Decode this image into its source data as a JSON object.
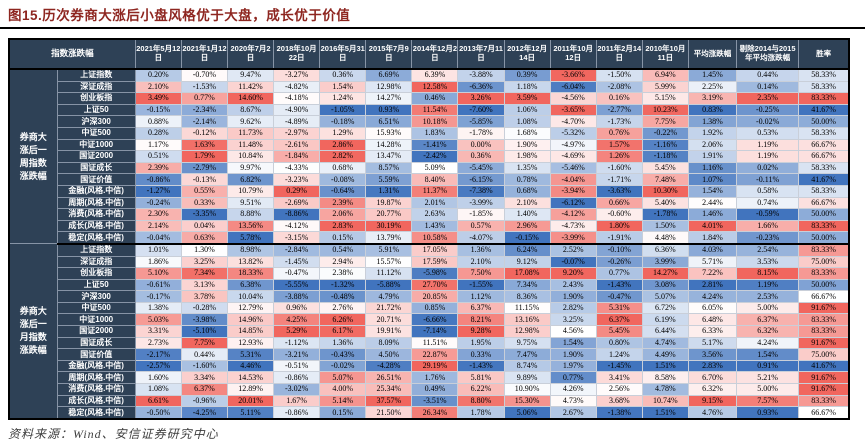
{
  "figure": {
    "title": "图15.历次券商大涨后小盘风格优于大盘，成长优于价值",
    "source": "资料来源：Wind、安信证券研究中心"
  },
  "colors": {
    "title_red": "#8E2620",
    "header_bg": "#2E4156",
    "header_text": "#FFFFFF",
    "scale_max_red": "#F1665E",
    "scale_mid_white": "#FFFFFF",
    "scale_min_blue": "#4174BE",
    "border_black": "#000000"
  },
  "chart_data": {
    "type": "table",
    "title": "图15.历次券商大涨后小盘风格优于大盘，成长优于价值",
    "corner_header": "指数涨跌幅",
    "unit": "%",
    "color_scale": "per-column diverging blue-white-red (min blue, max red)",
    "date_columns": [
      "2021年5月12日",
      "2021年1月12日",
      "2020年7月2日",
      "2018年10月22日",
      "2016年5月31日",
      "2015年7月9日",
      "2014年12月2日",
      "2013年7月11日",
      "2012年12月14日",
      "2011年10月12日",
      "2011年2月14日",
      "2010年10月11日"
    ],
    "summary_columns": [
      "平均涨跌幅",
      "剔除2014与2015年平均涨跌幅",
      "胜率"
    ],
    "blocks": [
      {
        "label": "券商大涨后一周指数涨跌幅",
        "rows": [
          {
            "name": "上证指数",
            "values": [
              0.2,
              -0.7,
              9.47,
              -3.27,
              0.36,
              6.69,
              6.39,
              -3.88,
              0.39,
              -3.66,
              -1.5,
              6.94
            ],
            "avg": 1.45,
            "avg_ex": 0.44,
            "win_rate": 58.33
          },
          {
            "name": "深证成指",
            "values": [
              2.1,
              -1.53,
              11.42,
              -4.82,
              1.54,
              12.98,
              12.58,
              -6.36,
              1.18,
              -6.04,
              -2.08,
              5.99
            ],
            "avg": 2.25,
            "avg_ex": 0.14,
            "win_rate": 58.33
          },
          {
            "name": "创业板指",
            "values": [
              3.49,
              0.77,
              14.6,
              -4.18,
              1.24,
              14.27,
              0.46,
              3.26,
              3.59,
              -4.56,
              0.16,
              5.15
            ],
            "avg": 3.19,
            "avg_ex": 2.35,
            "win_rate": 83.33
          },
          {
            "name": "上证50",
            "values": [
              -0.15,
              -2.34,
              8.67,
              -4.9,
              -1.05,
              0.93,
              11.54,
              -7.6,
              1.06,
              -3.65,
              -2.77,
              10.23
            ],
            "avg": 0.83,
            "avg_ex": -0.25,
            "win_rate": 41.67
          },
          {
            "name": "沪深300",
            "values": [
              0.88,
              -2.14,
              9.62,
              -4.89,
              -0.18,
              6.51,
              10.18,
              -5.85,
              1.08,
              -4.7,
              -1.73,
              7.75
            ],
            "avg": 1.38,
            "avg_ex": -0.02,
            "win_rate": 50.0
          },
          {
            "name": "中证500",
            "values": [
              0.28,
              -0.12,
              11.73,
              -2.97,
              1.29,
              15.93,
              1.83,
              -1.78,
              1.68,
              -5.32,
              0.76,
              -0.22
            ],
            "avg": 1.92,
            "avg_ex": 0.53,
            "win_rate": 58.33
          },
          {
            "name": "中证1000",
            "values": [
              1.17,
              1.63,
              11.48,
              -2.61,
              2.86,
              14.28,
              -1.41,
              0.0,
              1.9,
              -4.97,
              1.57,
              -1.16
            ],
            "avg": 2.06,
            "avg_ex": 1.19,
            "win_rate": 66.67
          },
          {
            "name": "国证2000",
            "values": [
              0.51,
              1.79,
              10.84,
              -1.84,
              2.82,
              13.47,
              -2.42,
              0.36,
              1.98,
              -4.69,
              1.26,
              -1.18
            ],
            "avg": 1.91,
            "avg_ex": 1.19,
            "win_rate": 66.67
          },
          {
            "name": "国证成长",
            "values": [
              2.39,
              -2.79,
              9.97,
              -4.33,
              0.68,
              8.57,
              5.09,
              -5.45,
              1.35,
              -5.46,
              -1.6,
              5.45
            ],
            "avg": 1.16,
            "avg_ex": 0.02,
            "win_rate": 58.33
          },
          {
            "name": "国证价值",
            "values": [
              -0.86,
              -0.13,
              6.82,
              -3.23,
              -0.08,
              5.59,
              8.4,
              -6.15,
              0.78,
              -4.04,
              -1.71,
              7.48
            ],
            "avg": 1.07,
            "avg_ex": -0.11,
            "win_rate": 41.67
          },
          {
            "name": "金融(风格.中信)",
            "values": [
              -1.27,
              0.55,
              10.79,
              0.29,
              -0.64,
              1.31,
              11.37,
              -7.38,
              0.68,
              -3.94,
              -3.63,
              10.3
            ],
            "avg": 1.54,
            "avg_ex": 0.58,
            "win_rate": 58.33
          },
          {
            "name": "周期(风格.中信)",
            "values": [
              -0.24,
              0.33,
              9.51,
              -2.69,
              2.39,
              19.87,
              2.01,
              -3.99,
              2.1,
              -6.12,
              0.66,
              5.4
            ],
            "avg": 2.44,
            "avg_ex": 0.74,
            "win_rate": 66.67
          },
          {
            "name": "消费(风格.中信)",
            "values": [
              2.3,
              -3.35,
              8.88,
              -8.86,
              2.06,
              20.77,
              2.63,
              -1.85,
              1.4,
              -4.12,
              -0.6,
              -1.78
            ],
            "avg": 1.46,
            "avg_ex": -0.59,
            "win_rate": 50.0
          },
          {
            "name": "成长(风格.中信)",
            "values": [
              2.14,
              0.04,
              13.56,
              -4.12,
              2.83,
              30.19,
              1.43,
              0.57,
              2.96,
              -4.73,
              1.8,
              1.5
            ],
            "avg": 4.01,
            "avg_ex": 1.66,
            "win_rate": 83.33
          },
          {
            "name": "稳定(风格.中信)",
            "values": [
              -0.04,
              0.63,
              5.78,
              -3.15,
              0.15,
              13.79,
              10.58,
              -4.07,
              -0.15,
              -3.99,
              -1.91,
              4.48
            ],
            "avg": 1.84,
            "avg_ex": -0.23,
            "win_rate": 50.0
          }
        ]
      },
      {
        "label": "券商大涨后一月指数涨跌幅",
        "rows": [
          {
            "name": "上证指数",
            "values": [
              1.01,
              1.3,
              8.98,
              -2.84,
              0.54,
              5.91,
              17.05,
              1.36,
              6.24,
              2.52,
              -0.1,
              6.36
            ],
            "avg": 4.03,
            "avg_ex": 2.54,
            "win_rate": 83.33
          },
          {
            "name": "深证成指",
            "values": [
              1.86,
              3.25,
              13.82,
              -1.45,
              2.94,
              15.57,
              17.59,
              2.1,
              9.12,
              -0.07,
              -0.26,
              3.99
            ],
            "avg": 5.71,
            "avg_ex": 3.53,
            "win_rate": 75.0
          },
          {
            "name": "创业板指",
            "values": [
              5.1,
              7.34,
              18.33,
              -0.47,
              2.38,
              11.12,
              -5.98,
              7.5,
              17.08,
              9.2,
              0.77,
              14.27
            ],
            "avg": 7.22,
            "avg_ex": 8.15,
            "win_rate": 83.33
          },
          {
            "name": "上证50",
            "values": [
              -0.61,
              3.13,
              6.38,
              -5.55,
              -1.32,
              -5.88,
              27.7,
              -1.55,
              7.34,
              2.43,
              -1.43,
              3.08
            ],
            "avg": 2.81,
            "avg_ex": 1.19,
            "win_rate": 50.0
          },
          {
            "name": "沪深300",
            "values": [
              -0.17,
              3.78,
              10.04,
              -3.88,
              -0.48,
              4.79,
              20.85,
              1.12,
              8.36,
              1.9,
              -0.47,
              5.07
            ],
            "avg": 4.24,
            "avg_ex": 2.53,
            "win_rate": 66.67
          },
          {
            "name": "中证500",
            "values": [
              1.38,
              -0.28,
              12.79,
              0.96,
              2.76,
              21.72,
              0.85,
              6.37,
              11.15,
              2.82,
              5.31,
              6.72
            ],
            "avg": 6.05,
            "avg_ex": 5.0,
            "win_rate": 91.67
          },
          {
            "name": "中证1000",
            "values": [
              5.03,
              -3.98,
              14.96,
              4.25,
              6.26,
              20.71,
              -6.66,
              8.21,
              13.16,
              3.25,
              6.37,
              6.19
            ],
            "avg": 6.48,
            "avg_ex": 6.37,
            "win_rate": 83.33
          },
          {
            "name": "国证2000",
            "values": [
              3.31,
              -5.1,
              14.85,
              5.29,
              6.17,
              19.91,
              -7.14,
              9.28,
              12.98,
              4.56,
              5.45,
              6.44
            ],
            "avg": 6.33,
            "avg_ex": 6.32,
            "win_rate": 83.33
          },
          {
            "name": "国证成长",
            "values": [
              2.73,
              7.75,
              12.93,
              -1.12,
              1.36,
              8.09,
              11.51,
              1.95,
              9.75,
              1.54,
              0.8,
              4.74
            ],
            "avg": 5.17,
            "avg_ex": 4.24,
            "win_rate": 91.67
          },
          {
            "name": "国证价值",
            "values": [
              -2.17,
              0.44,
              5.31,
              -3.21,
              -0.43,
              4.5,
              22.87,
              0.33,
              7.47,
              1.9,
              1.24,
              4.49
            ],
            "avg": 3.56,
            "avg_ex": 1.54,
            "win_rate": 75.0
          },
          {
            "name": "金融(风格.中信)",
            "values": [
              -2.57,
              -1.6,
              4.46,
              -0.51,
              -0.02,
              -4.28,
              29.19,
              -1.43,
              8.74,
              1.97,
              -1.45,
              1.51
            ],
            "avg": 2.83,
            "avg_ex": 0.91,
            "win_rate": 41.67
          },
          {
            "name": "周期(风格.中信)",
            "values": [
              1.6,
              3.34,
              14.53,
              -0.86,
              5.07,
              26.51,
              1.76,
              5.81,
              9.89,
              0.77,
              3.41,
              8.58
            ],
            "avg": 6.7,
            "avg_ex": 5.21,
            "win_rate": 91.67
          },
          {
            "name": "消费(风格.中信)",
            "values": [
              1.08,
              6.37,
              12.89,
              -3.02,
              4.0,
              25.34,
              0.49,
              6.22,
              10.9,
              4.26,
              2.56,
              4.78
            ],
            "avg": 6.32,
            "avg_ex": 5.0,
            "win_rate": 91.67
          },
          {
            "name": "成长(风格.中信)",
            "values": [
              6.61,
              -0.96,
              20.01,
              1.67,
              5.14,
              37.57,
              -3.51,
              8.8,
              15.3,
              4.73,
              3.68,
              10.74
            ],
            "avg": 9.15,
            "avg_ex": 7.57,
            "win_rate": 83.33
          },
          {
            "name": "稳定(风格.中信)",
            "values": [
              -0.5,
              -4.25,
              5.11,
              -0.86,
              0.15,
              21.5,
              26.34,
              1.78,
              5.06,
              2.67,
              -1.38,
              1.51
            ],
            "avg": 4.76,
            "avg_ex": 0.93,
            "win_rate": 66.67
          }
        ]
      }
    ]
  }
}
